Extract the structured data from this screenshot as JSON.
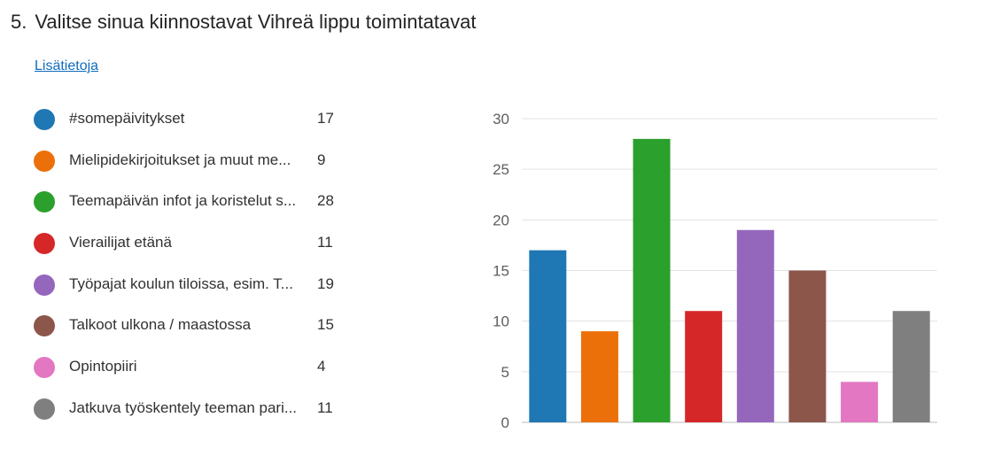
{
  "question": {
    "number": "5.",
    "title": "Valitse sinua kiinnostavat Vihreä lippu toimintatavat",
    "more_info_label": "Lisätietoja"
  },
  "legend": [
    {
      "label": "#somepäivitykset",
      "count": "17",
      "color": "#1f77b4"
    },
    {
      "label": "Mielipidekirjoitukset ja muut me...",
      "count": "9",
      "color": "#ec7009"
    },
    {
      "label": "Teemapäivän infot ja koristelut s...",
      "count": "28",
      "color": "#2ca02c"
    },
    {
      "label": "Vierailijat etänä",
      "count": "11",
      "color": "#d62728"
    },
    {
      "label": "Työpajat koulun tiloissa, esim. T...",
      "count": "19",
      "color": "#9467bd"
    },
    {
      "label": "Talkoot ulkona / maastossa",
      "count": "15",
      "color": "#8c564b"
    },
    {
      "label": "Opintopiiri",
      "count": "4",
      "color": "#e377c2"
    },
    {
      "label": "Jatkuva työskentely teeman pari...",
      "count": "11",
      "color": "#7f7f7f"
    }
  ],
  "chart_data": {
    "type": "bar",
    "categories": [
      "#somepäivitykset",
      "Mielipidekirjoitukset ja muut me...",
      "Teemapäivän infot ja koristelut s...",
      "Vierailijat etänä",
      "Työpajat koulun tiloissa, esim. T...",
      "Talkoot ulkona / maastossa",
      "Opintopiiri",
      "Jatkuva työskentely teeman pari..."
    ],
    "values": [
      17,
      9,
      28,
      11,
      19,
      15,
      4,
      11
    ],
    "colors": [
      "#1f77b4",
      "#ec7009",
      "#2ca02c",
      "#d62728",
      "#9467bd",
      "#8c564b",
      "#e377c2",
      "#7f7f7f"
    ],
    "yticks": [
      0,
      5,
      10,
      15,
      20,
      25,
      30
    ],
    "ylim": [
      0,
      30
    ],
    "grid": true,
    "title": "",
    "xlabel": "",
    "ylabel": ""
  }
}
